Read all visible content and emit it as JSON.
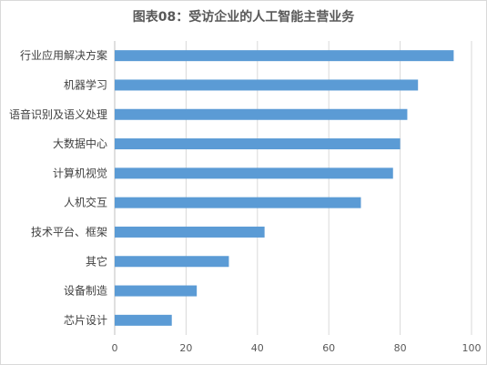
{
  "chart_data": {
    "type": "bar",
    "orientation": "horizontal",
    "title": "图表08：受访企业的人工智能主营业务",
    "categories": [
      "行业应用解决方案",
      "机器学习",
      "语音识别及语义处理",
      "大数据中心",
      "计算机视觉",
      "人机交互",
      "技术平台、框架",
      "其它",
      "设备制造",
      "芯片设计"
    ],
    "values": [
      95,
      85,
      82,
      80,
      78,
      69,
      42,
      32,
      23,
      16
    ],
    "xlim": [
      0,
      100
    ],
    "xticks": [
      "0",
      "20",
      "40",
      "60",
      "80",
      "100"
    ],
    "xlabel": "",
    "ylabel": "",
    "grid": "vertical",
    "bar_color": "#5b9bd5",
    "grid_color": "#d9d9d9"
  }
}
